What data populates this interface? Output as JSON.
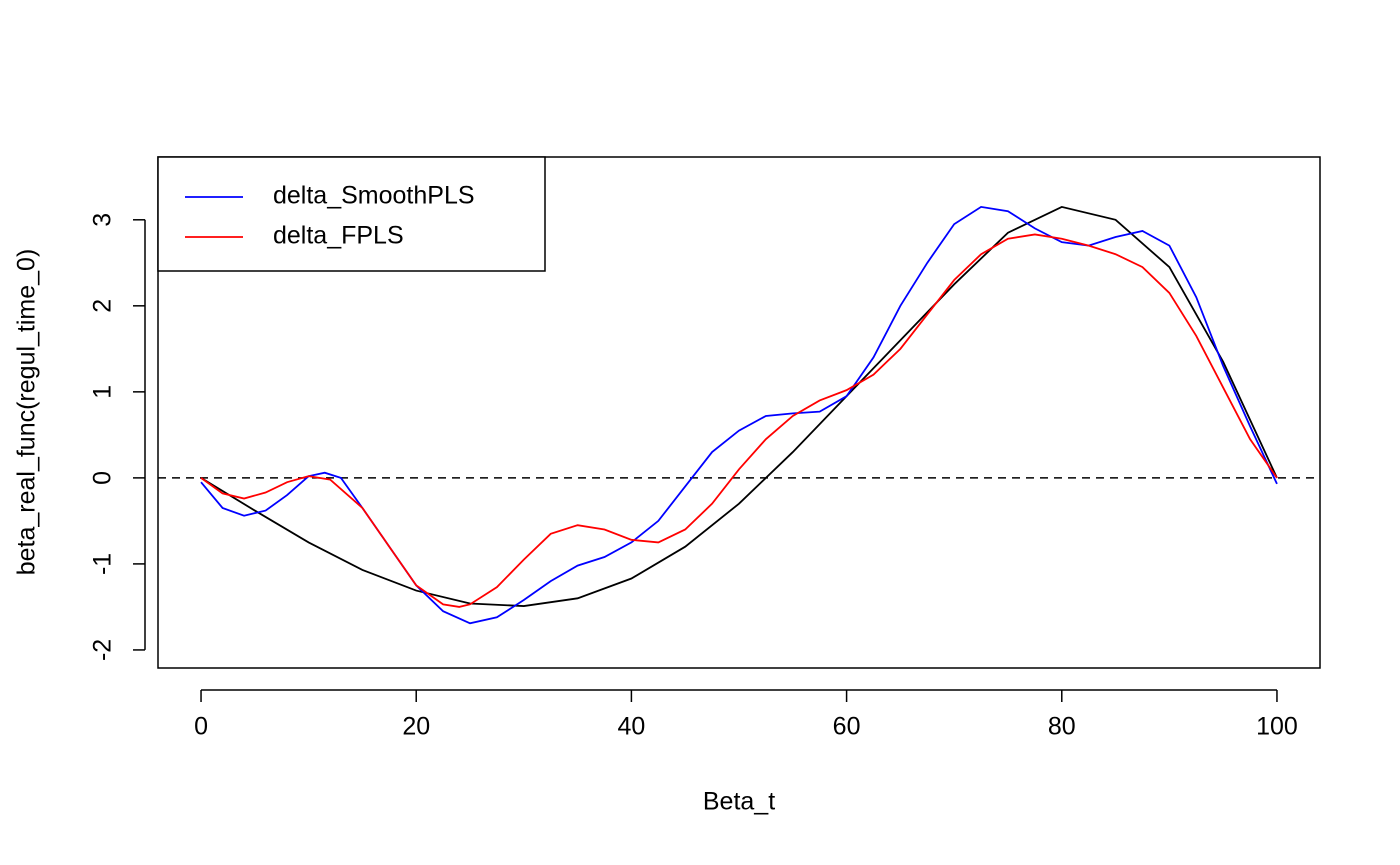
{
  "chart_data": {
    "type": "line",
    "xlabel": "Beta_t",
    "ylabel": "beta_real_func(regul_time_0)",
    "xlim": [
      -4,
      104
    ],
    "ylim": [
      -2.21,
      3.73
    ],
    "xticks": [
      0,
      20,
      40,
      60,
      80,
      100
    ],
    "yticks": [
      -2,
      -1,
      0,
      1,
      2,
      3
    ],
    "hlines": [
      0
    ],
    "legend": "top-left",
    "series": [
      {
        "color": "#000000",
        "x": [
          0,
          5,
          10,
          15,
          20,
          25,
          30,
          35,
          40,
          45,
          50,
          55,
          60,
          65,
          70,
          75,
          80,
          85,
          90,
          95,
          100
        ],
        "values": [
          0,
          -0.38,
          -0.75,
          -1.07,
          -1.31,
          -1.46,
          -1.49,
          -1.4,
          -1.17,
          -0.8,
          -0.3,
          0.3,
          0.95,
          1.6,
          2.25,
          2.85,
          3.15,
          3.0,
          2.45,
          1.35,
          0
        ]
      },
      {
        "name": "delta_SmoothPLS",
        "color": "#0000ff",
        "x": [
          0,
          2,
          4,
          6,
          8,
          10,
          11.5,
          13,
          15,
          17.5,
          20,
          22.5,
          25,
          27.5,
          30,
          32.5,
          35,
          37.5,
          40,
          42.5,
          45,
          47.5,
          50,
          52.5,
          55,
          57.5,
          60,
          62.5,
          65,
          67.5,
          70,
          72.5,
          75,
          77.5,
          80,
          82.5,
          85,
          87.5,
          90,
          92.5,
          95,
          97.5,
          100
        ],
        "values": [
          -0.05,
          -0.35,
          -0.44,
          -0.38,
          -0.2,
          0.02,
          0.06,
          0.0,
          -0.35,
          -0.8,
          -1.25,
          -1.55,
          -1.69,
          -1.62,
          -1.42,
          -1.2,
          -1.02,
          -0.92,
          -0.75,
          -0.5,
          -0.1,
          0.3,
          0.55,
          0.72,
          0.75,
          0.77,
          0.95,
          1.4,
          2.0,
          2.5,
          2.95,
          3.15,
          3.1,
          2.9,
          2.74,
          2.7,
          2.8,
          2.87,
          2.7,
          2.1,
          1.3,
          0.6,
          -0.07
        ]
      },
      {
        "name": "delta_FPLS",
        "color": "#ff0000",
        "x": [
          0,
          2,
          4,
          6,
          8,
          10,
          12,
          15,
          17.5,
          20,
          22.5,
          24,
          25,
          27.5,
          30,
          32.5,
          35,
          37.5,
          40,
          42.5,
          45,
          47.5,
          50,
          52.5,
          55,
          57.5,
          60,
          62.5,
          65,
          67.5,
          70,
          72.5,
          75,
          77.5,
          80,
          82.5,
          85,
          87.5,
          90,
          92.5,
          95,
          97.5,
          100
        ],
        "values": [
          0,
          -0.18,
          -0.24,
          -0.17,
          -0.05,
          0.02,
          -0.02,
          -0.35,
          -0.8,
          -1.25,
          -1.47,
          -1.5,
          -1.47,
          -1.27,
          -0.95,
          -0.65,
          -0.55,
          -0.6,
          -0.72,
          -0.75,
          -0.6,
          -0.3,
          0.1,
          0.45,
          0.72,
          0.9,
          1.02,
          1.2,
          1.5,
          1.9,
          2.3,
          2.6,
          2.78,
          2.83,
          2.78,
          2.7,
          2.6,
          2.45,
          2.15,
          1.65,
          1.05,
          0.45,
          0
        ]
      }
    ]
  }
}
